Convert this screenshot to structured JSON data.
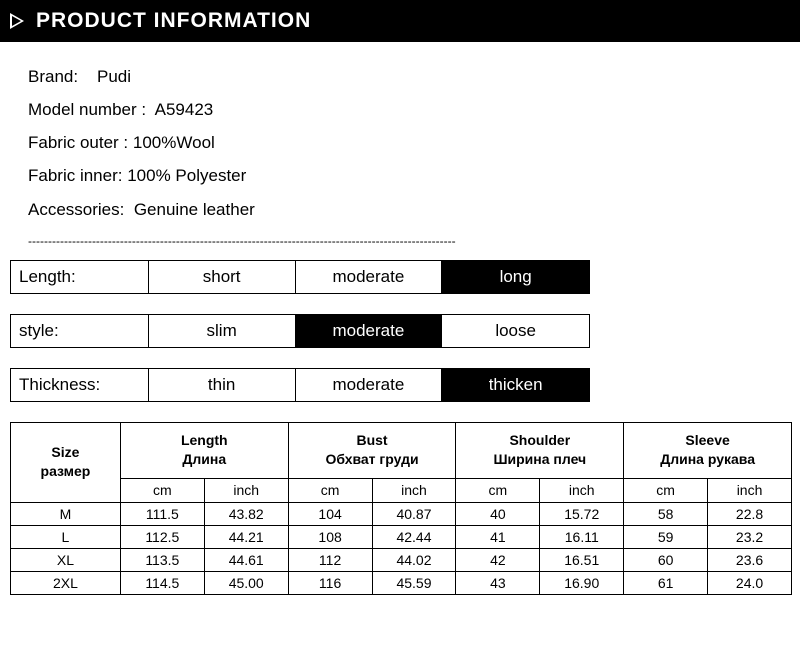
{
  "header": {
    "title": "PRODUCT INFORMATION"
  },
  "info": {
    "brand_label": "Brand:",
    "brand_value": "Pudi",
    "model_label": "Model number :",
    "model_value": "A59423",
    "fabric_outer_label": "Fabric outer :",
    "fabric_outer_value": "100%Wool",
    "fabric_inner_label": "Fabric inner:",
    "fabric_inner_value": "100% Polyester",
    "accessories_label": "Accessories:",
    "accessories_value": "Genuine leather"
  },
  "divider": "-----------------------------------------------------------------------------------------------------------",
  "attrs": {
    "length": {
      "label": "Length:",
      "opts": [
        "short",
        "moderate",
        "long"
      ],
      "selected_index": 2
    },
    "style": {
      "label": "style:",
      "opts": [
        "slim",
        "moderate",
        "loose"
      ],
      "selected_index": 1
    },
    "thickness": {
      "label": "Thickness:",
      "opts": [
        "thin",
        "moderate",
        "thicken"
      ],
      "selected_index": 2
    }
  },
  "size_table": {
    "size_head_en": "Size",
    "size_head_ru": "размер",
    "groups": [
      {
        "en": "Length",
        "ru": "Длина"
      },
      {
        "en": "Bust",
        "ru": "Обхват груди"
      },
      {
        "en": "Shoulder",
        "ru": "Ширина плеч"
      },
      {
        "en": "Sleeve",
        "ru": "Длина рукава"
      }
    ],
    "units": {
      "cm": "cm",
      "inch": "inch"
    },
    "rows": [
      {
        "size": "M",
        "vals": [
          "111.5",
          "43.82",
          "104",
          "40.87",
          "40",
          "15.72",
          "58",
          "22.8"
        ]
      },
      {
        "size": "L",
        "vals": [
          "112.5",
          "44.21",
          "108",
          "42.44",
          "41",
          "16.11",
          "59",
          "23.2"
        ]
      },
      {
        "size": "XL",
        "vals": [
          "113.5",
          "44.61",
          "112",
          "44.02",
          "42",
          "16.51",
          "60",
          "23.6"
        ]
      },
      {
        "size": "2XL",
        "vals": [
          "114.5",
          "45.00",
          "116",
          "45.59",
          "43",
          "16.90",
          "61",
          "24.0"
        ]
      }
    ]
  },
  "colors": {
    "bg": "#ffffff",
    "fg": "#000000",
    "header_bg": "#000000",
    "header_fg": "#ffffff",
    "selected_bg": "#000000",
    "selected_fg": "#ffffff",
    "border": "#000000"
  }
}
